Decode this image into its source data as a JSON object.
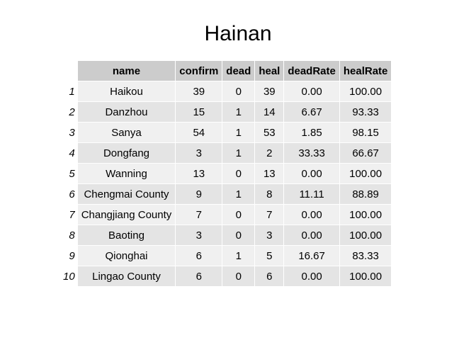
{
  "chart_data": {
    "type": "table",
    "title": "Hainan",
    "columns": [
      "name",
      "confirm",
      "dead",
      "heal",
      "deadRate",
      "healRate"
    ],
    "rows": [
      {
        "index": "1",
        "cells": [
          "Haikou",
          "39",
          "0",
          "39",
          "0.00",
          "100.00"
        ]
      },
      {
        "index": "2",
        "cells": [
          "Danzhou",
          "15",
          "1",
          "14",
          "6.67",
          "93.33"
        ]
      },
      {
        "index": "3",
        "cells": [
          "Sanya",
          "54",
          "1",
          "53",
          "1.85",
          "98.15"
        ]
      },
      {
        "index": "4",
        "cells": [
          "Dongfang",
          "3",
          "1",
          "2",
          "33.33",
          "66.67"
        ]
      },
      {
        "index": "5",
        "cells": [
          "Wanning",
          "13",
          "0",
          "13",
          "0.00",
          "100.00"
        ]
      },
      {
        "index": "6",
        "cells": [
          "Chengmai County",
          "9",
          "1",
          "8",
          "11.11",
          "88.89"
        ]
      },
      {
        "index": "7",
        "cells": [
          "Changjiang County",
          "7",
          "0",
          "7",
          "0.00",
          "100.00"
        ]
      },
      {
        "index": "8",
        "cells": [
          "Baoting",
          "3",
          "0",
          "3",
          "0.00",
          "100.00"
        ]
      },
      {
        "index": "9",
        "cells": [
          "Qionghai",
          "6",
          "1",
          "5",
          "16.67",
          "83.33"
        ]
      },
      {
        "index": "10",
        "cells": [
          "Lingao County",
          "6",
          "0",
          "6",
          "0.00",
          "100.00"
        ]
      }
    ]
  }
}
